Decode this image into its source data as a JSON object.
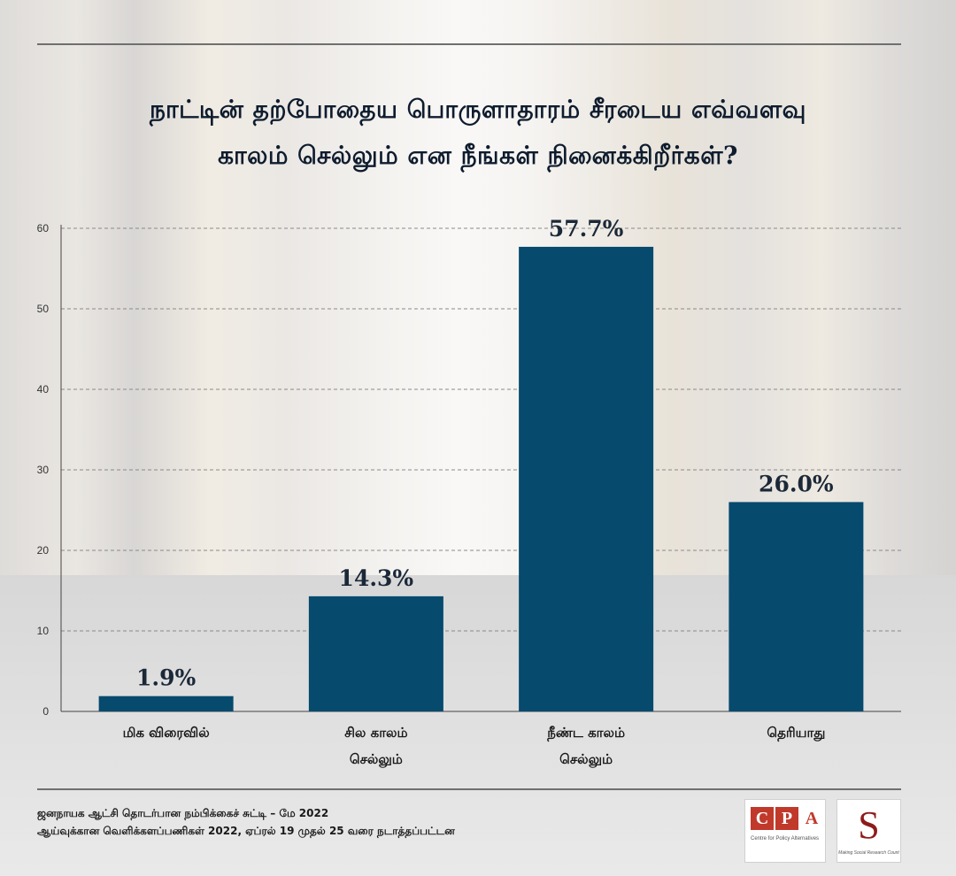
{
  "title_line1": "நாட்டின் தற்போதைய பொருளாதாரம் சீரடைய எவ்வளவு",
  "title_line2": "காலம் செல்லும் என நீங்கள் நினைக்கிறீர்கள்?",
  "chart_data": {
    "type": "bar",
    "categories": [
      [
        "மிக விரைவில்"
      ],
      [
        "சில காலம்",
        "செல்லும்"
      ],
      [
        "நீண்ட காலம்",
        "செல்லும்"
      ],
      [
        "தெரியாது"
      ]
    ],
    "values": [
      1.9,
      14.3,
      57.7,
      26.0
    ],
    "value_labels": [
      "1.9%",
      "14.3%",
      "57.7%",
      "26.0%"
    ],
    "yticks": [
      0,
      10,
      20,
      30,
      40,
      50,
      60
    ],
    "ylim": [
      0,
      60
    ],
    "grid": true,
    "bar_color": "#064a6e"
  },
  "footer": {
    "line1": "ஜனநாயக ஆட்சி தொடர்பான நம்பிக்கைச் சுட்டி – மே 2022",
    "line2": "ஆய்வுக்கான வெளிக்களப்பணிகள் 2022, ஏப்ரல் 19 முதல் 25 வரை நடாத்தப்பட்டன"
  },
  "logos": {
    "cpa": {
      "letters": [
        "C",
        "P",
        "A"
      ],
      "small_text": "Centre for Policy Alternatives"
    },
    "src": {
      "small_text": "Making Social Research Count"
    }
  }
}
